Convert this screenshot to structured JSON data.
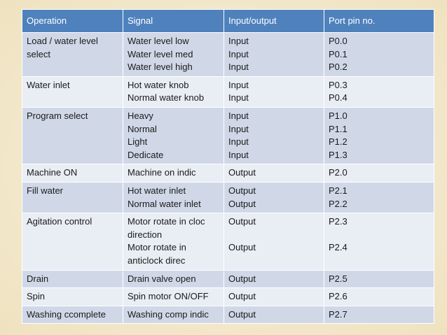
{
  "table": {
    "headers": [
      "Operation",
      "Signal",
      "Input/output",
      "Port pin no."
    ],
    "rows": [
      {
        "operation": [
          "Load / water level",
          "select"
        ],
        "signal": [
          "Water level low",
          "Water level med",
          "Water level high"
        ],
        "io": [
          "Input",
          "Input",
          "Input"
        ],
        "pins": [
          "P0.0",
          "P0.1",
          "P0.2"
        ]
      },
      {
        "operation": [
          "Water inlet"
        ],
        "signal": [
          "Hot water knob",
          "Normal water knob"
        ],
        "io": [
          "Input",
          "Input"
        ],
        "pins": [
          "P0.3",
          "P0.4"
        ]
      },
      {
        "operation": [
          "Program select"
        ],
        "signal": [
          "Heavy",
          "Normal",
          "Light",
          "Dedicate"
        ],
        "io": [
          "Input",
          "Input",
          "Input",
          "Input"
        ],
        "pins": [
          "P1.0",
          "P1.1",
          "P1.2",
          "P1.3"
        ]
      },
      {
        "operation": [
          "Machine ON"
        ],
        "signal": [
          "Machine on indic"
        ],
        "io": [
          "Output"
        ],
        "pins": [
          "P2.0"
        ]
      },
      {
        "operation": [
          "Fill water"
        ],
        "signal": [
          "Hot water inlet",
          "Normal water inlet"
        ],
        "io": [
          "Output",
          "Output"
        ],
        "pins": [
          "P2.1",
          "P2.2"
        ]
      },
      {
        "operation": [
          "Agitation control"
        ],
        "signal": [
          "Motor rotate in cloc",
          "direction",
          "Motor rotate in",
          "anticlock direc"
        ],
        "io": [
          "Output",
          "",
          "Output",
          ""
        ],
        "pins": [
          "P2.3",
          "",
          "P2.4",
          ""
        ]
      },
      {
        "operation": [
          "Drain"
        ],
        "signal": [
          "Drain valve open"
        ],
        "io": [
          "Output"
        ],
        "pins": [
          "P2.5"
        ]
      },
      {
        "operation": [
          "Spin"
        ],
        "signal": [
          "Spin motor ON/OFF"
        ],
        "io": [
          "Output"
        ],
        "pins": [
          "P2.6"
        ]
      },
      {
        "operation": [
          "Washing ccomplete"
        ],
        "signal": [
          "Washing comp indic"
        ],
        "io": [
          "Output"
        ],
        "pins": [
          "P2.7"
        ]
      }
    ]
  },
  "colors": {
    "header": "#4f81bd",
    "row_odd": "#d0d8e8",
    "row_even": "#e9edf4",
    "background": "#f5ecd6"
  }
}
